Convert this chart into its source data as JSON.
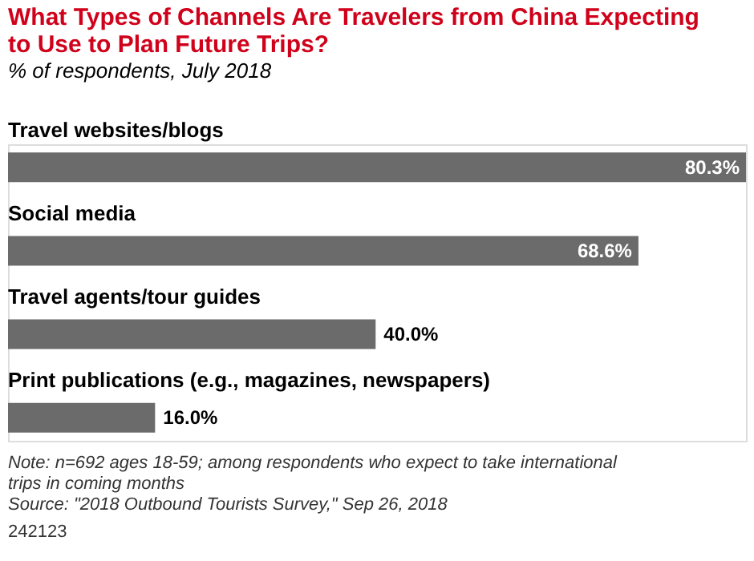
{
  "chart_data": {
    "type": "bar",
    "orientation": "horizontal",
    "title": "What Types of Channels Are Travelers from China Expecting to Use to Plan Future Trips?",
    "subtitle": "% of respondents, July 2018",
    "categories": [
      "Travel websites/blogs",
      "Social media",
      "Travel agents/tour guides",
      "Print publications (e.g., magazines, newspapers)"
    ],
    "values": [
      80.3,
      68.6,
      40.0,
      16.0
    ],
    "value_labels": [
      "80.3%",
      "68.6%",
      "40.0%",
      "16.0%"
    ],
    "color": "#6b6b6b",
    "annotations": [
      "Note: n=692 ages 18-59; among respondents who expect to take international trips in coming months",
      "Source: \"2018 Outbound Tourists Survey,\" Sep 26, 2018",
      "242123"
    ]
  }
}
